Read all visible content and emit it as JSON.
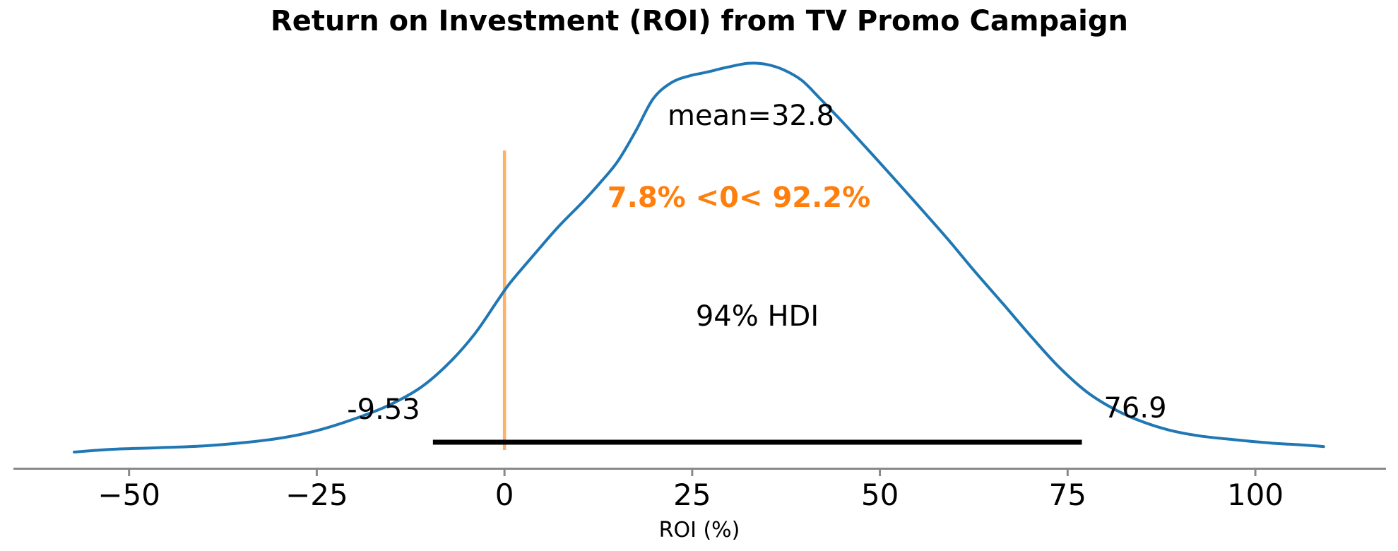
{
  "title": "Return on Investment (ROI) from TV Promo Campaign",
  "x_axis": {
    "label": "ROI (%)",
    "tick_labels": [
      "−50",
      "−25",
      "0",
      "25",
      "50",
      "75",
      "100"
    ]
  },
  "annotations": {
    "mean": "mean=32.8",
    "ref_val": "7.8% <0< 92.2%",
    "hdi": "94% HDI",
    "hdi_lower": "-9.53",
    "hdi_upper": "76.9"
  },
  "colors": {
    "curve": "#1f77b4",
    "ref_line": "#fdb267",
    "ref_text": "#ff7f0e",
    "hdi_bar": "#000000",
    "axis": "#898989",
    "text": "#000000"
  },
  "chart_data": {
    "type": "line",
    "kind": "posterior_density_kde",
    "title": "Return on Investment (ROI) from TV Promo Campaign",
    "xlabel": "ROI (%)",
    "ylabel": "",
    "mean": 32.8,
    "hdi_prob_text": "94% HDI",
    "hdi_lower": -9.53,
    "hdi_upper": 76.9,
    "ref_value": 0,
    "pct_below_ref": 7.8,
    "pct_above_ref": 92.2,
    "xlim": [
      -65.4,
      117.4
    ],
    "xticks": [
      -50,
      -25,
      0,
      25,
      50,
      75,
      100
    ],
    "grid": false,
    "legend": false,
    "kde": {
      "x": [
        -57.3,
        -52.2,
        -46.0,
        -39.9,
        -34.3,
        -29.1,
        -24.4,
        -19.7,
        -15.5,
        -11.2,
        -7.5,
        -4.0,
        -0.9,
        0.8,
        3.8,
        7.1,
        10.4,
        12.8,
        15.1,
        17.5,
        19.8,
        22.2,
        24.5,
        26.9,
        29.7,
        32.5,
        34.9,
        37.2,
        39.6,
        41.9,
        44.8,
        48.0,
        51.3,
        55.1,
        58.9,
        62.6,
        66.4,
        70.2,
        73.9,
        77.7,
        81.5,
        85.2,
        89.0,
        92.7,
        97.0,
        102.1,
        106.4,
        109.1
      ],
      "density": [
        0.002,
        0.009,
        0.013,
        0.018,
        0.027,
        0.04,
        0.06,
        0.089,
        0.121,
        0.167,
        0.228,
        0.304,
        0.391,
        0.437,
        0.505,
        0.578,
        0.643,
        0.694,
        0.748,
        0.826,
        0.908,
        0.949,
        0.966,
        0.976,
        0.989,
        0.999,
        0.996,
        0.982,
        0.955,
        0.911,
        0.853,
        0.786,
        0.716,
        0.634,
        0.551,
        0.466,
        0.382,
        0.297,
        0.219,
        0.154,
        0.109,
        0.078,
        0.056,
        0.043,
        0.034,
        0.025,
        0.02,
        0.016
      ]
    }
  }
}
